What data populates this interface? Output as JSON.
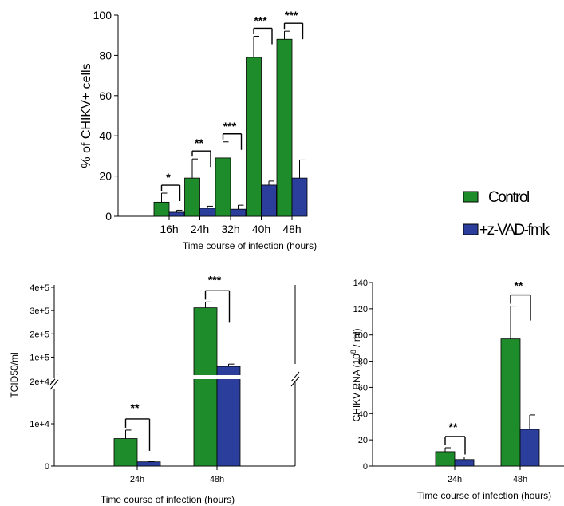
{
  "colors": {
    "control": "#1e8c2a",
    "zvad": "#2b3e9c",
    "axis": "#000000"
  },
  "legend": {
    "control_label": "Control",
    "zvad_label": "+z-VAD-fmk"
  },
  "chart_data": [
    {
      "type": "bar",
      "categories": [
        "16h",
        "24h",
        "32h",
        "40h",
        "48h"
      ],
      "series": [
        {
          "name": "Control",
          "values": [
            7,
            19,
            29,
            79,
            88
          ],
          "errors": [
            4.5,
            9.5,
            8,
            10.5,
            4
          ]
        },
        {
          "name": "+z-VAD-fmk",
          "values": [
            2,
            4,
            3.5,
            15.5,
            19
          ],
          "errors": [
            1,
            1,
            2,
            2,
            9
          ]
        }
      ],
      "xlabel": "Time course of infection (hours)",
      "ylabel": "% of CHIKV+ cells",
      "ylim": [
        0,
        100
      ],
      "yticks": [
        "0",
        "20",
        "40",
        "60",
        "80",
        "100"
      ],
      "significance": [
        "*",
        "**",
        "***",
        "***",
        "***"
      ]
    },
    {
      "type": "bar",
      "categories": [
        "24h",
        "48h"
      ],
      "series": [
        {
          "name": "Control",
          "values": [
            6500,
            312000
          ],
          "errors": [
            2000,
            25000
          ]
        },
        {
          "name": "+z-VAD-fmk",
          "values": [
            1000,
            60000
          ],
          "errors": [
            100,
            10000
          ]
        }
      ],
      "xlabel": "Time course of infection (hours)",
      "ylabel": "TCID50/ml",
      "axis_break": true,
      "lower_yticks": [
        "0",
        "1e+4",
        "2e+4"
      ],
      "upper_yticks": [
        "1e+5",
        "2e+5",
        "3e+5",
        "4e+5"
      ],
      "significance": [
        "**",
        "***"
      ]
    },
    {
      "type": "bar",
      "categories": [
        "24h",
        "48h"
      ],
      "series": [
        {
          "name": "Control",
          "values": [
            11,
            97
          ],
          "errors": [
            3,
            25
          ]
        },
        {
          "name": "+z-VAD-fmk",
          "values": [
            5,
            28
          ],
          "errors": [
            2,
            11
          ]
        }
      ],
      "xlabel": "Time course of infection (hours)",
      "ylabel_main": "CHIKV RNA (10",
      "ylabel_sup": "8",
      "ylabel_tail": " / ml)",
      "ylim": [
        0,
        140
      ],
      "yticks": [
        "0",
        "20",
        "40",
        "60",
        "80",
        "100",
        "120",
        "140"
      ],
      "significance": [
        "**",
        "**"
      ]
    }
  ]
}
